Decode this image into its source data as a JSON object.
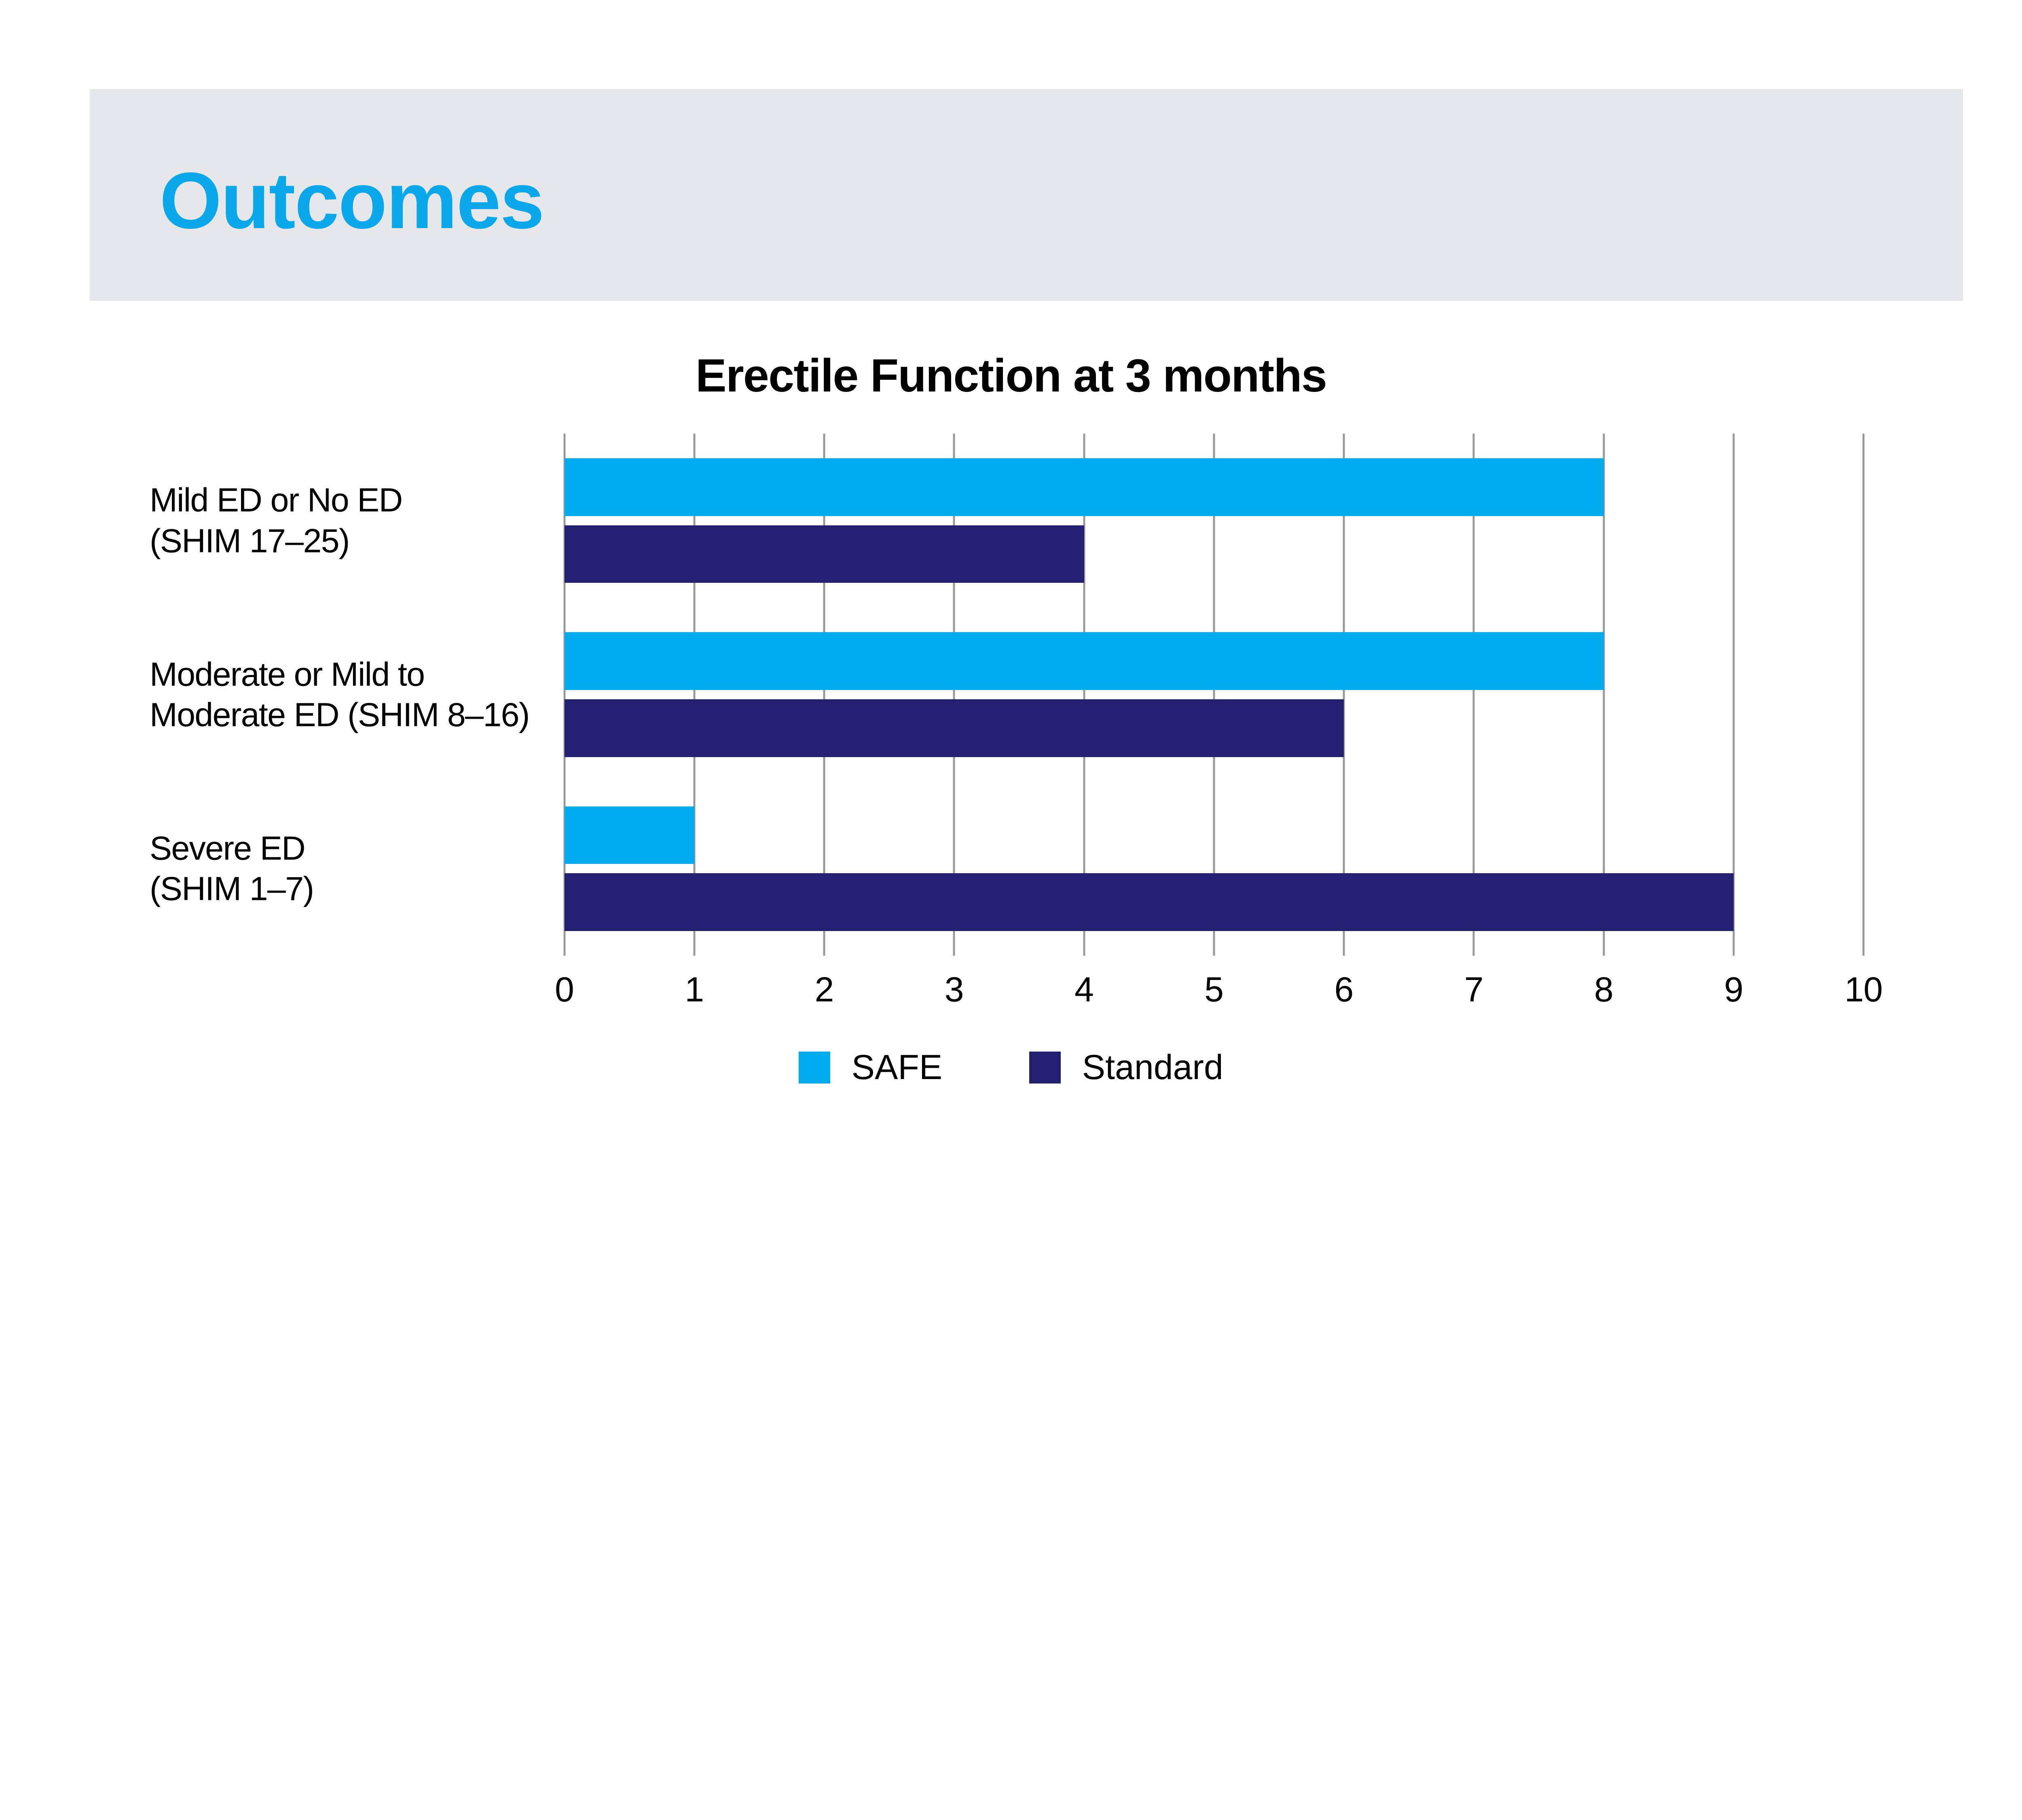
{
  "header": {
    "title": "Outcomes",
    "bg_color": "#E6E7E8",
    "title_color": "#0AA7EA"
  },
  "chart_data": {
    "type": "bar",
    "orientation": "horizontal",
    "title": "Erectile Function at 3 months",
    "categories": [
      {
        "lines": [
          "Mild ED or No ED",
          "(SHIM 17–25)"
        ]
      },
      {
        "lines": [
          "Moderate or Mild to",
          "Moderate ED (SHIM 8–16)"
        ]
      },
      {
        "lines": [
          "Severe ED",
          "(SHIM 1–7)"
        ]
      }
    ],
    "series": [
      {
        "name": "SAFE",
        "color": "#00ACEC",
        "values": [
          8,
          8,
          1
        ]
      },
      {
        "name": "Standard",
        "color": "#242071",
        "values": [
          4,
          6,
          9
        ]
      }
    ],
    "xlim": [
      0,
      10
    ],
    "x_ticks": [
      "0",
      "1",
      "2",
      "3",
      "4",
      "5",
      "6",
      "7",
      "8",
      "9",
      "10"
    ],
    "grid": true,
    "grid_color": "#97999C",
    "legend_position": "bottom",
    "text_color": "#000000"
  }
}
